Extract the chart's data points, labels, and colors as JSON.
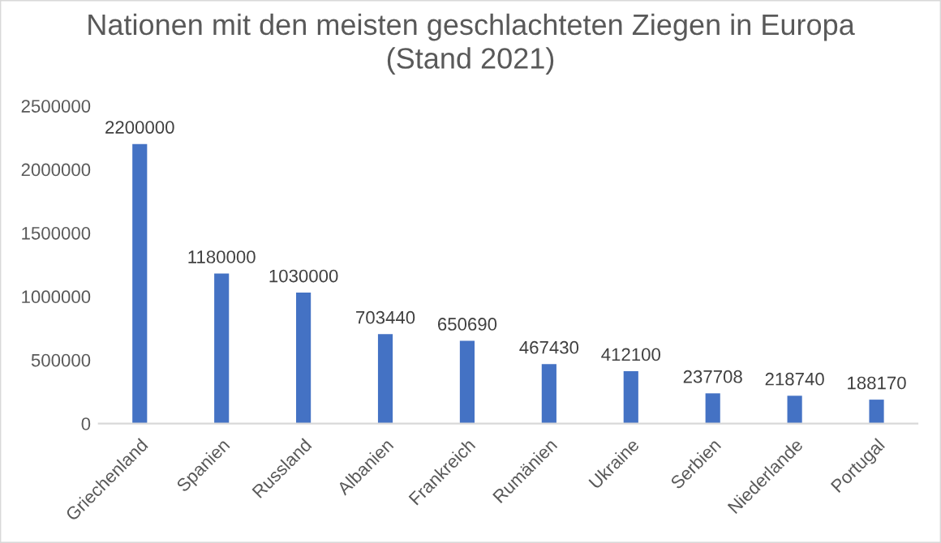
{
  "chart_data": {
    "type": "bar",
    "title": "Nationen mit den meisten geschlachteten Ziegen in Europa\n(Stand 2021)",
    "categories": [
      "Griechenland",
      "Spanien",
      "Russland",
      "Albanien",
      "Frankreich",
      "Rumänien",
      "Ukraine",
      "Serbien",
      "Niederlande",
      "Portugal"
    ],
    "values": [
      2200000,
      1180000,
      1030000,
      703440,
      650690,
      467430,
      412100,
      237708,
      218740,
      188170
    ],
    "color": "#4472c4",
    "ylim": [
      0,
      2500000
    ],
    "yticks": [
      0,
      500000,
      1000000,
      1500000,
      2000000,
      2500000
    ],
    "grid": false,
    "data_labels": true
  }
}
